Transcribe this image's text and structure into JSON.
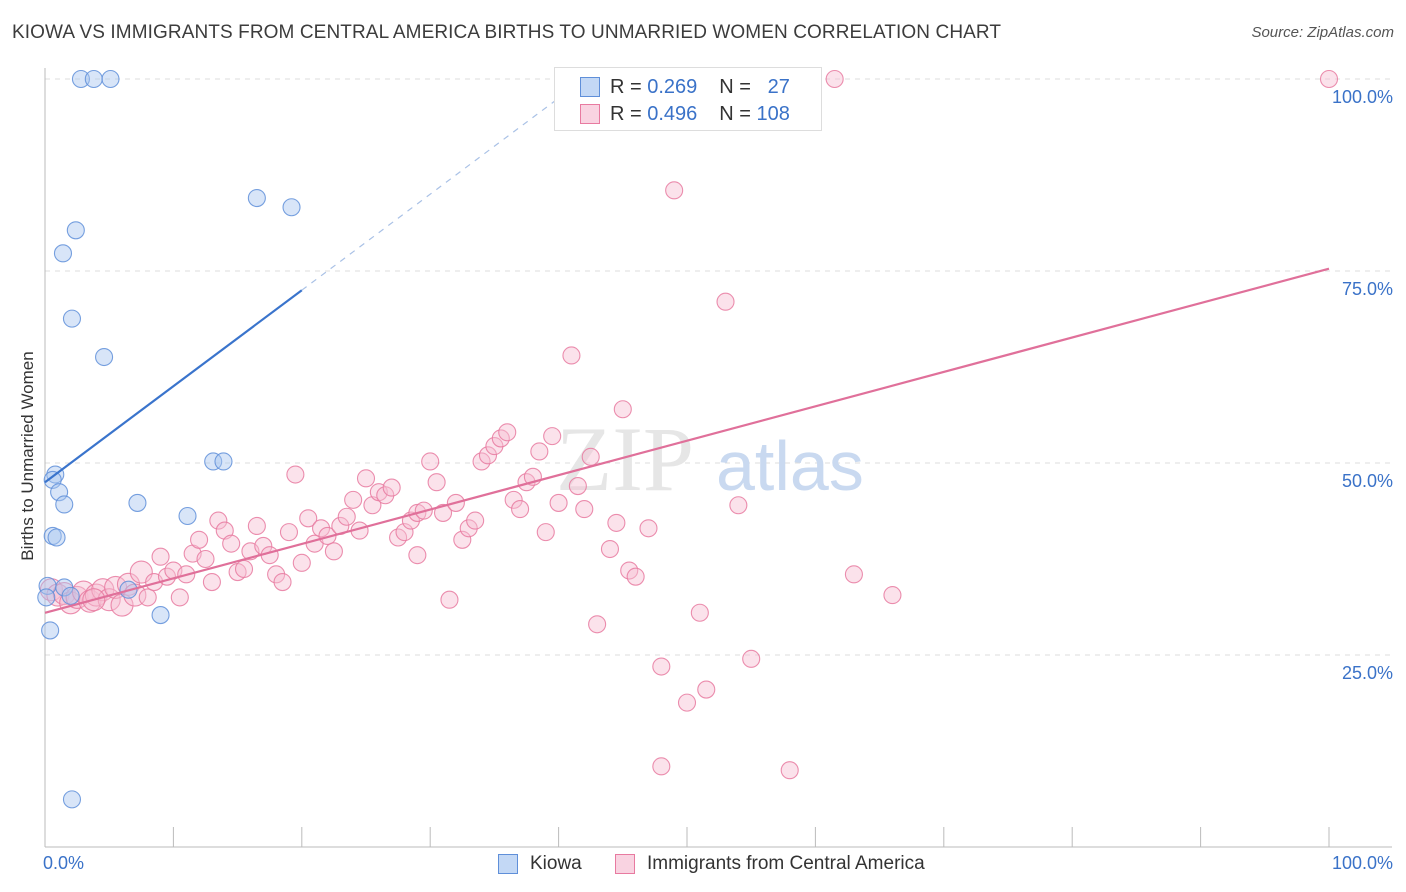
{
  "title": "KIOWA VS IMMIGRANTS FROM CENTRAL AMERICA BIRTHS TO UNMARRIED WOMEN CORRELATION CHART",
  "source": "Source: ZipAtlas.com",
  "watermark": {
    "zip": "ZIP",
    "atlas": "atlas"
  },
  "legend_top": {
    "rows": [
      {
        "r_label": "R =",
        "r_value": "0.269",
        "n_label": "N =",
        "n_value": "27",
        "color": "#5f8fd9"
      },
      {
        "r_label": "R =",
        "r_value": "0.496",
        "n_label": "N =",
        "n_value": "108",
        "color": "#e87aa0"
      }
    ]
  },
  "chart_data": {
    "type": "scatter",
    "title": "KIOWA VS IMMIGRANTS FROM CENTRAL AMERICA BIRTHS TO UNMARRIED WOMEN CORRELATION CHART",
    "xlabel": "",
    "ylabel": "Births to Unmarried Women",
    "xlim": [
      0,
      100
    ],
    "ylim": [
      0,
      100
    ],
    "x_tick_labels": [
      "0.0%",
      "100.0%"
    ],
    "y_tick_labels": [
      "25.0%",
      "50.0%",
      "75.0%",
      "100.0%"
    ],
    "y_ticks": [
      25,
      50,
      75,
      100
    ],
    "grid": "horizontal dashed",
    "legend_position": "bottom-center",
    "series": [
      {
        "name": "Kiowa",
        "color": "#5f8fd9",
        "fill": "#a9c6f0",
        "r": 0.269,
        "n": 27,
        "trend": {
          "x": [
            0,
            20
          ],
          "y": [
            47.5,
            72.5
          ],
          "dashed_to": [
            42,
            100
          ]
        },
        "points": [
          [
            2.8,
            100
          ],
          [
            3.8,
            100
          ],
          [
            5.1,
            100
          ],
          [
            16.5,
            84.5
          ],
          [
            19.2,
            83.3
          ],
          [
            2.4,
            80.3
          ],
          [
            1.4,
            77.3
          ],
          [
            2.1,
            68.8
          ],
          [
            4.6,
            63.8
          ],
          [
            13.1,
            50.2
          ],
          [
            13.9,
            50.2
          ],
          [
            0.8,
            48.5
          ],
          [
            0.6,
            47.8
          ],
          [
            1.1,
            46.2
          ],
          [
            1.5,
            44.6
          ],
          [
            7.2,
            44.8
          ],
          [
            11.1,
            43.1
          ],
          [
            0.6,
            40.5
          ],
          [
            0.9,
            40.3
          ],
          [
            0.2,
            34.0
          ],
          [
            1.5,
            33.8
          ],
          [
            6.5,
            33.5
          ],
          [
            2.0,
            32.7
          ],
          [
            0.1,
            32.5
          ],
          [
            9.0,
            30.2
          ],
          [
            0.4,
            28.2
          ],
          [
            2.1,
            6.2
          ]
        ]
      },
      {
        "name": "Immigrants from Central America",
        "color": "#e87aa0",
        "fill": "#f6bfd2",
        "r": 0.496,
        "n": 108,
        "trend": {
          "x": [
            0,
            100
          ],
          "y": [
            30.5,
            75.3
          ]
        },
        "points": [
          [
            0.5,
            33.5
          ],
          [
            1.0,
            32.8
          ],
          [
            1.5,
            33.0
          ],
          [
            2.0,
            31.8
          ],
          [
            2.5,
            32.5
          ],
          [
            3.0,
            33.2
          ],
          [
            3.5,
            32.0
          ],
          [
            4.0,
            32.8
          ],
          [
            4.5,
            33.5
          ],
          [
            5.0,
            32.2
          ],
          [
            5.5,
            33.8
          ],
          [
            6.0,
            31.5
          ],
          [
            6.5,
            34.2
          ],
          [
            7.0,
            32.8
          ],
          [
            7.5,
            35.8
          ],
          [
            8.0,
            32.5
          ],
          [
            8.5,
            34.5
          ],
          [
            9.0,
            37.8
          ],
          [
            9.5,
            35.2
          ],
          [
            10.0,
            36.0
          ],
          [
            10.5,
            32.5
          ],
          [
            11.0,
            35.5
          ],
          [
            11.5,
            38.2
          ],
          [
            12.0,
            40.0
          ],
          [
            12.5,
            37.5
          ],
          [
            13.0,
            34.5
          ],
          [
            13.5,
            42.5
          ],
          [
            14.0,
            41.2
          ],
          [
            14.5,
            39.5
          ],
          [
            15.0,
            35.8
          ],
          [
            15.5,
            36.2
          ],
          [
            16.0,
            38.5
          ],
          [
            16.5,
            41.8
          ],
          [
            17.0,
            39.2
          ],
          [
            17.5,
            38.0
          ],
          [
            18.0,
            35.5
          ],
          [
            18.5,
            34.5
          ],
          [
            19.0,
            41.0
          ],
          [
            19.5,
            48.5
          ],
          [
            20.0,
            37.0
          ],
          [
            20.5,
            42.8
          ],
          [
            21.0,
            39.5
          ],
          [
            21.5,
            41.5
          ],
          [
            22.0,
            40.5
          ],
          [
            22.5,
            38.5
          ],
          [
            23.0,
            41.8
          ],
          [
            23.5,
            43.0
          ],
          [
            24.0,
            45.2
          ],
          [
            24.5,
            41.2
          ],
          [
            25.0,
            48.0
          ],
          [
            25.5,
            44.5
          ],
          [
            26.0,
            46.2
          ],
          [
            26.5,
            45.8
          ],
          [
            27.0,
            46.8
          ],
          [
            27.5,
            40.3
          ],
          [
            28.0,
            41.0
          ],
          [
            28.5,
            42.5
          ],
          [
            29.0,
            43.5
          ],
          [
            29.5,
            43.8
          ],
          [
            30.0,
            50.2
          ],
          [
            30.5,
            47.5
          ],
          [
            31.0,
            43.5
          ],
          [
            31.5,
            32.2
          ],
          [
            32.0,
            44.8
          ],
          [
            32.5,
            40.0
          ],
          [
            33.0,
            41.5
          ],
          [
            33.5,
            42.5
          ],
          [
            34.0,
            50.2
          ],
          [
            34.5,
            51.0
          ],
          [
            35.0,
            52.2
          ],
          [
            35.5,
            53.2
          ],
          [
            36.0,
            54.0
          ],
          [
            36.5,
            45.2
          ],
          [
            37.0,
            44.0
          ],
          [
            37.5,
            47.5
          ],
          [
            38.0,
            48.2
          ],
          [
            38.5,
            51.5
          ],
          [
            39.0,
            41.0
          ],
          [
            39.5,
            53.5
          ],
          [
            40.0,
            44.8
          ],
          [
            41.0,
            64.0
          ],
          [
            41.5,
            47.0
          ],
          [
            42.0,
            44.0
          ],
          [
            42.5,
            50.8
          ],
          [
            43.0,
            29.0
          ],
          [
            44.0,
            38.8
          ],
          [
            44.5,
            42.2
          ],
          [
            45.0,
            57.0
          ],
          [
            45.5,
            36.0
          ],
          [
            46.0,
            35.2
          ],
          [
            47.0,
            41.5
          ],
          [
            48.0,
            23.5
          ],
          [
            49.0,
            85.5
          ],
          [
            50.0,
            18.8
          ],
          [
            51.0,
            30.5
          ],
          [
            51.5,
            20.5
          ],
          [
            53.0,
            71.0
          ],
          [
            54.0,
            44.5
          ],
          [
            55.0,
            24.5
          ],
          [
            58.0,
            10.0
          ],
          [
            59.0,
            100
          ],
          [
            61.5,
            100
          ],
          [
            63.0,
            35.5
          ],
          [
            66.0,
            32.8
          ],
          [
            48.0,
            10.5
          ],
          [
            29.0,
            38.0
          ],
          [
            3.8,
            32.2
          ],
          [
            100.0,
            100
          ]
        ]
      }
    ]
  },
  "bottom_legend": {
    "items": [
      {
        "label": "Kiowa",
        "color": "#5f8fd9",
        "fill": "#c3d8f5"
      },
      {
        "label": "Immigrants from Central America",
        "color": "#e87aa0",
        "fill": "#f9d3e1"
      }
    ]
  }
}
